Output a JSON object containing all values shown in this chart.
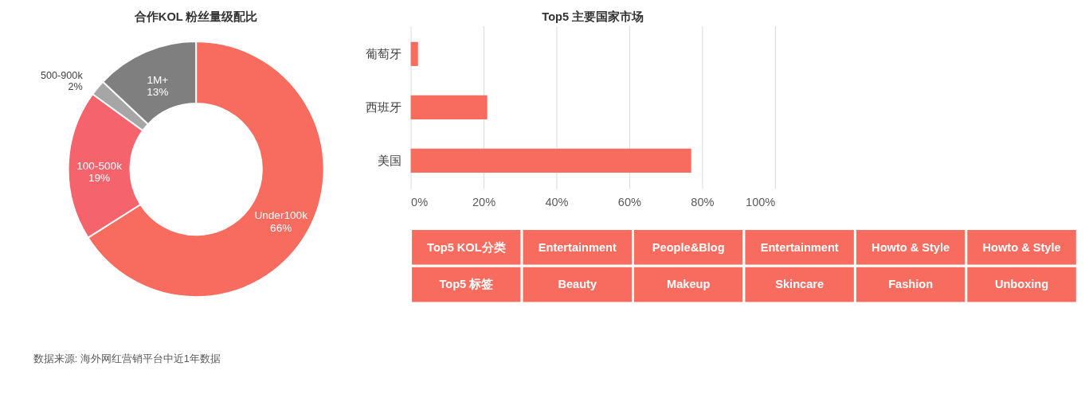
{
  "chart_data": [
    {
      "type": "donut",
      "title": "合作KOL 粉丝量级配比",
      "categories": [
        "Under100k",
        "100-500k",
        "500-900k",
        "1M+"
      ],
      "values": [
        66,
        19,
        2,
        13
      ],
      "value_labels": [
        "66%",
        "19%",
        "2%",
        "13%"
      ],
      "colors": [
        "#f76c5e",
        "#f5636d",
        "#a6a6a6",
        "#7f7f7f"
      ],
      "legend": false,
      "annotations": [
        "数据来源: 海外网红营销平台中近1年数据"
      ]
    },
    {
      "type": "bar",
      "orientation": "horizontal",
      "title": "Top5 主要国家市场",
      "categories": [
        "葡萄牙",
        "西班牙",
        "美国"
      ],
      "values": [
        2,
        21,
        77
      ],
      "color": "#f76c5e",
      "xlim": [
        0,
        100
      ],
      "xticks": [
        {
          "value": 0,
          "label": "0%"
        },
        {
          "value": 20,
          "label": "20%"
        },
        {
          "value": 40,
          "label": "40%"
        },
        {
          "value": 60,
          "label": "60%"
        },
        {
          "value": 80,
          "label": "80%"
        },
        {
          "value": 100,
          "label": "100%"
        }
      ],
      "grid": "x"
    },
    {
      "type": "other",
      "y_categories": [
        "Top5 KOL分类",
        "Top5 标签"
      ],
      "color": "#f76c5e",
      "cell_labels": [
        [
          "Entertainment",
          "People&Blog",
          "Entertainment",
          "Howto & Style",
          "Howto & Style"
        ],
        [
          "Beauty",
          "Makeup",
          "Skincare",
          "Fashion",
          "Unboxing"
        ]
      ]
    }
  ]
}
